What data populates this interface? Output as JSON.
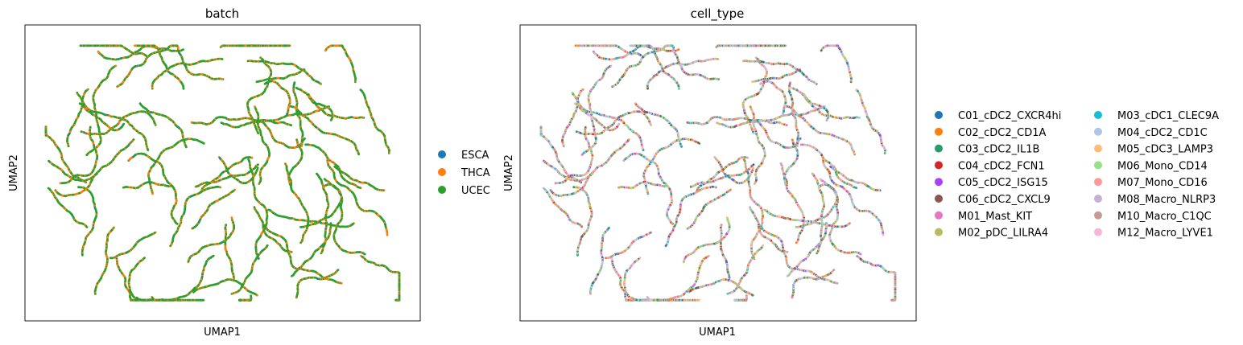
{
  "chart_data": [
    {
      "type": "scatter",
      "title": "batch",
      "xlabel": "UMAP1",
      "ylabel": "UMAP2",
      "ticks": "none",
      "grid": false,
      "legend_position": "right",
      "legend_columns": 1,
      "categories": [
        {
          "name": "ESCA",
          "color": "#1f77b4"
        },
        {
          "name": "THCA",
          "color": "#ff7f0e"
        },
        {
          "name": "UCEC",
          "color": "#2ca02c"
        }
      ],
      "point_color_weights": [
        0.02,
        0.28,
        0.7
      ]
    },
    {
      "type": "scatter",
      "title": "cell_type",
      "xlabel": "UMAP1",
      "ylabel": "UMAP2",
      "ticks": "none",
      "grid": false,
      "legend_position": "right",
      "legend_columns": 2,
      "categories": [
        {
          "name": "C01_cDC2_CXCR4hi",
          "color": "#1f77b4"
        },
        {
          "name": "C02_cDC2_CD1A",
          "color": "#ff7f0e"
        },
        {
          "name": "C03_cDC2_IL1B",
          "color": "#279e68"
        },
        {
          "name": "C04_cDC2_FCN1",
          "color": "#d62728"
        },
        {
          "name": "C05_cDC2_ISG15",
          "color": "#aa40fc"
        },
        {
          "name": "C06_cDC2_CXCL9",
          "color": "#8c564b"
        },
        {
          "name": "M01_Mast_KIT",
          "color": "#e377c2"
        },
        {
          "name": "M02_pDC_LILRA4",
          "color": "#b5bd61"
        },
        {
          "name": "M03_cDC1_CLEC9A",
          "color": "#17becf"
        },
        {
          "name": "M04_cDC2_CD1C",
          "color": "#aec7e8"
        },
        {
          "name": "M05_cDC3_LAMP3",
          "color": "#ffbb78"
        },
        {
          "name": "M06_Mono_CD14",
          "color": "#98df8a"
        },
        {
          "name": "M07_Mono_CD16",
          "color": "#ff9896"
        },
        {
          "name": "M08_Macro_NLRP3",
          "color": "#c5b0d5"
        },
        {
          "name": "M10_Macro_C1QC",
          "color": "#c49c94"
        },
        {
          "name": "M12_Macro_LYVE1",
          "color": "#f7b6d2"
        }
      ],
      "point_color_weights": [
        0.05,
        0.06,
        0.06,
        0.02,
        0.03,
        0.03,
        0.08,
        0.1,
        0.04,
        0.12,
        0.08,
        0.1,
        0.06,
        0.06,
        0.05,
        0.06
      ]
    }
  ]
}
